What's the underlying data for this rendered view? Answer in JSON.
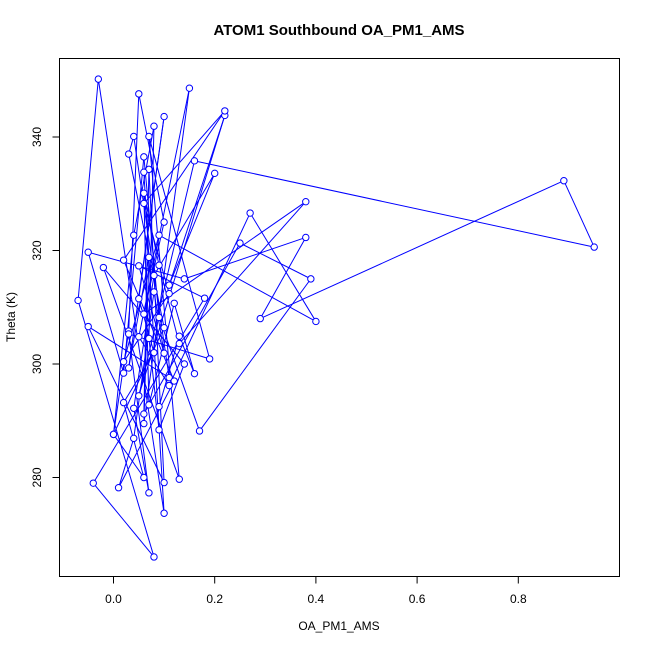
{
  "chart_data": {
    "type": "line",
    "title": "ATOM1 Southbound OA_PM1_AMS",
    "xlabel": "OA_PM1_AMS",
    "ylabel": "Theta (K)",
    "xlim": [
      -0.1,
      1.0
    ],
    "ylim": [
      260,
      355
    ],
    "xticks": [
      "0.0",
      "0.2",
      "0.4",
      "0.6",
      "0.8"
    ],
    "yticks": [
      "280",
      "300",
      "320",
      "340"
    ],
    "grid": false,
    "marker": "open-circle",
    "series_color": "#0000ff",
    "series": [
      {
        "points": [
          [
            0.09,
            292.5
          ],
          [
            0.13,
            304.9
          ],
          [
            0.16,
            298.3
          ],
          [
            0.12,
            310.7
          ],
          [
            0.07,
            292.8
          ],
          [
            0.06,
            330.1
          ],
          [
            0.09,
            317.4
          ],
          [
            0.13,
            303.6
          ],
          [
            0.38,
            328.6
          ],
          [
            0.06,
            308.8
          ],
          [
            0.1,
            325.0
          ],
          [
            0.05,
            347.6
          ],
          [
            0.03,
            305.8
          ],
          [
            0.0,
            287.6
          ],
          [
            0.04,
            322.7
          ],
          [
            0.08,
            341.9
          ],
          [
            0.07,
            304.5
          ],
          [
            0.09,
            288.4
          ],
          [
            0.14,
            300.0
          ],
          [
            -0.02,
            317.0
          ],
          [
            0.13,
            279.7
          ],
          [
            0.07,
            340.1
          ],
          [
            0.19,
            300.9
          ],
          [
            0.03,
            305.3
          ],
          [
            0.07,
            277.3
          ],
          [
            0.04,
            292.2
          ],
          [
            0.08,
            315.6
          ],
          [
            0.2,
            333.6
          ],
          [
            0.11,
            313.9
          ],
          [
            0.22,
            343.8
          ],
          [
            0.05,
            294.4
          ],
          [
            0.16,
            335.8
          ],
          [
            0.95,
            320.6
          ],
          [
            0.89,
            332.3
          ],
          [
            0.29,
            308.0
          ],
          [
            0.38,
            322.3
          ],
          [
            0.14,
            315.0
          ],
          [
            -0.05,
            319.7
          ],
          [
            0.02,
            298.4
          ],
          [
            0.06,
            336.5
          ],
          [
            0.09,
            308.2
          ],
          [
            0.17,
            288.2
          ],
          [
            0.39,
            315.0
          ],
          [
            0.25,
            321.3
          ],
          [
            0.06,
            291.2
          ],
          [
            0.07,
            334.3
          ],
          [
            0.1,
            279.1
          ],
          [
            -0.05,
            306.6
          ],
          [
            0.11,
            297.6
          ],
          [
            0.04,
            340.1
          ],
          [
            0.03,
            337.0
          ],
          [
            0.1,
            306.4
          ],
          [
            0.0,
            287.6
          ],
          [
            0.06,
            280.0
          ],
          [
            0.02,
            293.2
          ],
          [
            0.08,
            302.0
          ],
          [
            0.05,
            311.5
          ],
          [
            0.1,
            343.6
          ],
          [
            0.03,
            299.3
          ],
          [
            0.07,
            318.8
          ],
          [
            0.06,
            289.5
          ],
          [
            0.15,
            348.6
          ],
          [
            0.05,
            304.8
          ],
          [
            0.11,
            296.2
          ],
          [
            0.27,
            326.6
          ],
          [
            0.4,
            307.5
          ],
          [
            0.09,
            322.7
          ],
          [
            0.02,
            300.4
          ],
          [
            0.11,
            312.4
          ],
          [
            0.06,
            328.3
          ],
          [
            0.22,
            344.6
          ],
          [
            0.02,
            318.3
          ],
          [
            0.12,
            297.0
          ],
          [
            0.01,
            278.2
          ],
          [
            0.04,
            286.9
          ],
          [
            0.08,
            312.7
          ],
          [
            0.1,
            301.9
          ],
          [
            0.05,
            317.3
          ],
          [
            0.18,
            311.6
          ],
          [
            -0.04,
            279.0
          ],
          [
            0.08,
            266.0
          ],
          [
            -0.07,
            311.2
          ],
          [
            -0.03,
            350.2
          ],
          [
            0.1,
            273.7
          ],
          [
            0.06,
            333.8
          ]
        ]
      }
    ]
  }
}
